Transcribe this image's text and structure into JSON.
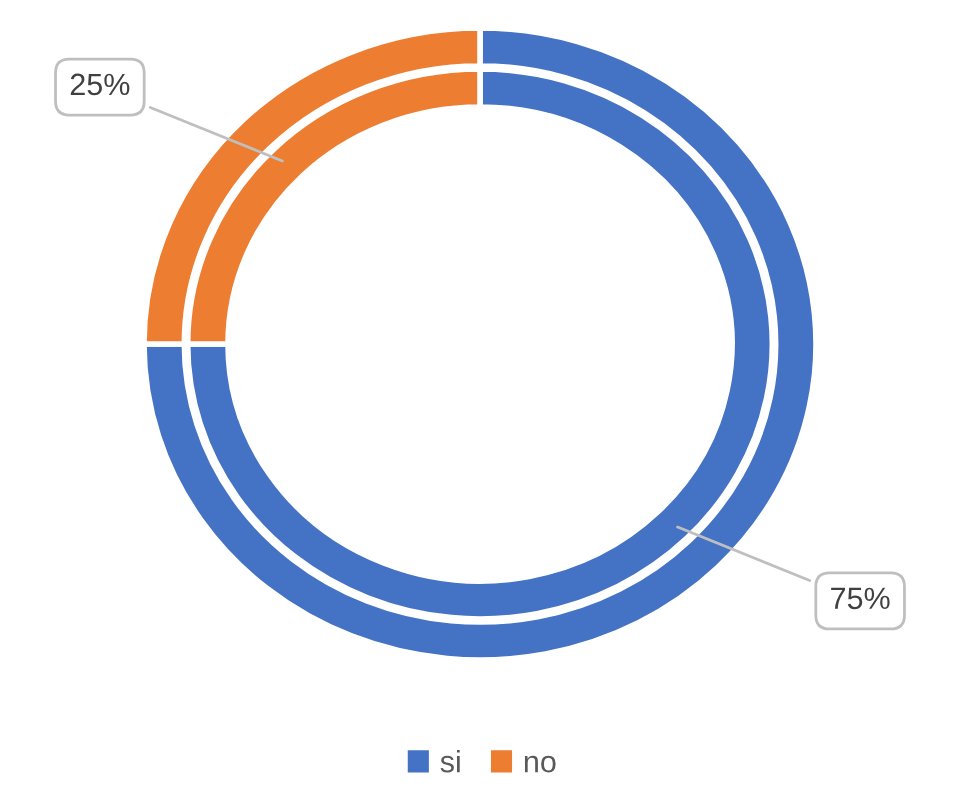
{
  "chart_data": {
    "type": "donut",
    "categories": [
      "si",
      "no"
    ],
    "colors": [
      "#4472c4",
      "#ed7d31"
    ],
    "series": [
      {
        "values": [
          75,
          25
        ]
      },
      {
        "values": [
          75,
          25
        ],
        "value_labels": [
          "75%",
          "25%"
        ]
      }
    ],
    "legend": "bottom"
  }
}
